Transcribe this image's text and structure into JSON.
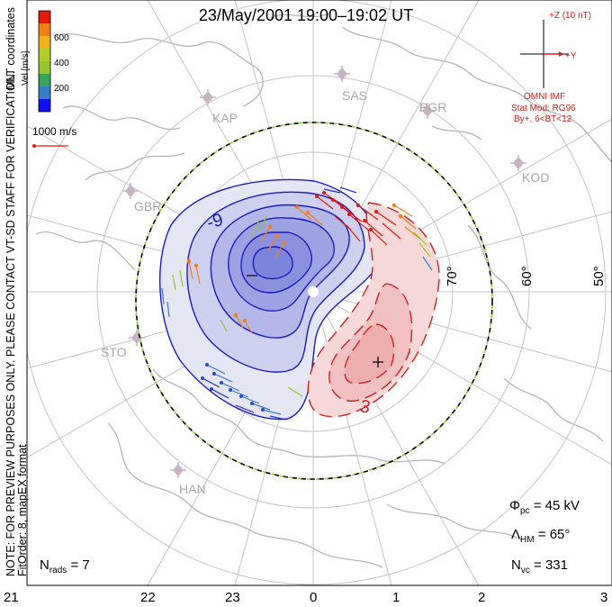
{
  "title": "23/May/2001 19:00–19:02 UT",
  "side_notes": {
    "coords": "MLT coordinates",
    "preview": "NOTE: FOR PREVIEW PURPOSES ONLY. PLEASE CONTACT VT-SD STAFF FOR VERIFICATION.",
    "fitorder": "FitOrder: 8, mapEX format"
  },
  "colorbar": {
    "title": "Vel [m/s]",
    "ticks": [
      "600",
      "400",
      "200"
    ],
    "colors": [
      "#e3190f",
      "#f08018",
      "#f0b21a",
      "#96c62e",
      "#3aa35a",
      "#3a7bc8",
      "#1f2fd6",
      "#1010f0"
    ]
  },
  "scale_vector": "1000 m/s",
  "imf": {
    "z_label": "+Z (10 nT)",
    "y_label": "+Y",
    "source": "OMNI IMF",
    "model": "Stat Mod: RG96",
    "conditions": "By+, 6<BT<12"
  },
  "contours": {
    "neg_label": "-9",
    "pos_label": "3",
    "min_marker": "–",
    "max_marker": "+"
  },
  "latitudes": [
    "70°",
    "60°",
    "50°"
  ],
  "mlt_ticks": [
    "21",
    "22",
    "23",
    "0",
    "1",
    "2",
    "3"
  ],
  "sites": [
    "SAS",
    "KAP",
    "PGR",
    "GBR",
    "KOD",
    "STO",
    "HAN"
  ],
  "stats": {
    "phi_sym": "Φ",
    "phi_sub": "pc",
    "phi_val": "= 45 kV",
    "lam_sym": "Λ",
    "lam_sub": "HM",
    "lam_val": "= 65°",
    "nvc_sym": "N",
    "nvc_sub": "vc",
    "nvc_val": "= 331",
    "nrad_sym": "N",
    "nrad_sub": "rads",
    "nrad_val": "= 7"
  },
  "colors": {
    "negative_contour": "#1c1cc0",
    "positive_contour": "#d02020",
    "grid": "#c4c4c4",
    "coastline": "#b4b4b4"
  }
}
